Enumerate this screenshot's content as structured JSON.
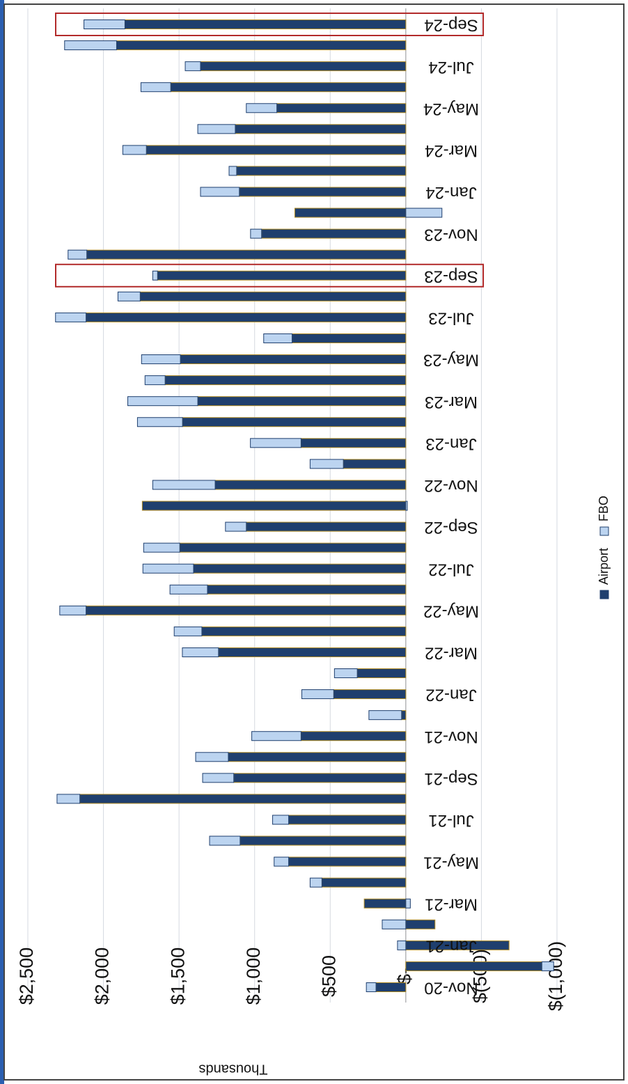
{
  "chart_data": {
    "type": "bar",
    "stacked": true,
    "y_label": "Thousands",
    "categories": [
      "Nov-20",
      null,
      "Jan-21",
      null,
      "Mar-21",
      null,
      "May-21",
      null,
      "Jul-21",
      null,
      "Sep-21",
      null,
      "Nov-21",
      null,
      "Jan-22",
      null,
      "Mar-22",
      null,
      "May-22",
      null,
      "Jul-22",
      null,
      "Sep-22",
      null,
      "Nov-22",
      null,
      "Jan-23",
      null,
      "Mar-23",
      null,
      "May-23",
      null,
      "Jul-23",
      null,
      "Sep-23",
      null,
      "Nov-23",
      null,
      "Jan-24",
      null,
      "Mar-24",
      null,
      "May-24",
      null,
      "Jul-24",
      null,
      "Sep-24"
    ],
    "series": [
      {
        "name": "Airport",
        "color": "#1f3f6e",
        "values": [
          197,
          -900,
          -683,
          -193,
          275,
          555,
          775,
          1096,
          775,
          2156,
          1138,
          1174,
          693,
          28,
          477,
          321,
          1239,
          1349,
          2115,
          1312,
          1404,
          1495,
          1055,
          1743,
          1261,
          413,
          693,
          1477,
          1376,
          1592,
          1491,
          752,
          2115,
          1757,
          1642,
          2110,
          954,
          734,
          1101,
          1119,
          1716,
          1128,
          853,
          1555,
          1358,
          1913,
          1858
        ]
      },
      {
        "name": "FBO",
        "color": "#bcd4f0",
        "values": [
          64,
          -78,
          55,
          156,
          -30,
          78,
          96,
          202,
          106,
          151,
          206,
          216,
          326,
          216,
          211,
          151,
          239,
          183,
          174,
          248,
          335,
          239,
          138,
          -10,
          413,
          220,
          335,
          298,
          463,
          133,
          257,
          188,
          202,
          147,
          32,
          124,
          73,
          -239,
          257,
          50,
          156,
          248,
          202,
          197,
          101,
          344,
          271
        ]
      }
    ],
    "ylim": [
      -1000,
      2500
    ],
    "yticks": [
      {
        "value": 2500,
        "label": "$2,500"
      },
      {
        "value": 2000,
        "label": "$2,000"
      },
      {
        "value": 1500,
        "label": "$1,500"
      },
      {
        "value": 1000,
        "label": "$1,000"
      },
      {
        "value": 500,
        "label": "$500"
      },
      {
        "value": 0,
        "label": "$-"
      },
      {
        "value": -500,
        "label": "$(500)"
      },
      {
        "value": -1000,
        "label": "$(1,000)"
      }
    ],
    "grid": true,
    "legend": "bottom",
    "highlight": [
      "Sep-23",
      "Sep-24"
    ],
    "highlight_color": "#b22a2a"
  }
}
